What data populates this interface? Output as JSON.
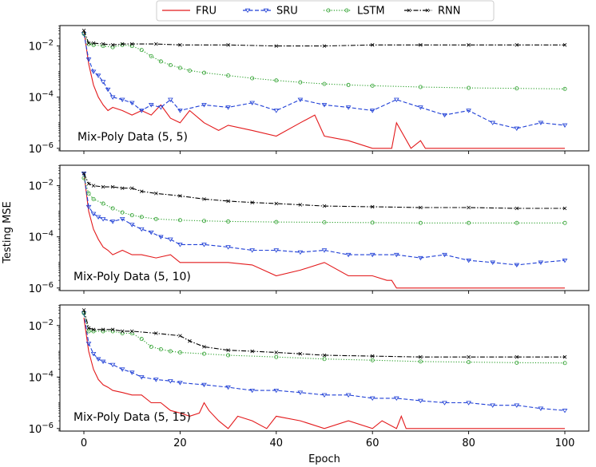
{
  "chart_data": {
    "type": "line",
    "xlabel": "Epoch",
    "ylabel": "Testing MSE",
    "yscale": "log",
    "xlim": [
      0,
      100
    ],
    "ylim": [
      1e-06,
      0.1
    ],
    "xticks": [
      "0",
      "20",
      "40",
      "60",
      "80",
      "100"
    ],
    "yticks": [
      {
        "base": "10",
        "exp": "−6",
        "value": 1e-06
      },
      {
        "base": "10",
        "exp": "−4",
        "value": 0.0001
      },
      {
        "base": "10",
        "exp": "−2",
        "value": 0.01
      }
    ],
    "legend": {
      "placement": "top-center",
      "entries": [
        {
          "name": "FRU",
          "color": "#e31a1c",
          "style": "solid",
          "marker": "none"
        },
        {
          "name": "SRU",
          "color": "#1f3fd6",
          "style": "dashed",
          "marker": "triangle-down"
        },
        {
          "name": "LSTM",
          "color": "#2ca02c",
          "style": "dotted",
          "marker": "circle"
        },
        {
          "name": "RNN",
          "color": "#000000",
          "style": "dashdot",
          "marker": "x"
        }
      ]
    },
    "panels": [
      {
        "title": "Mix-Poly Data (5, 5)",
        "series": [
          {
            "name": "FRU",
            "x": [
              0,
              1,
              2,
              3,
              4,
              5,
              6,
              8,
              10,
              12,
              14,
              16,
              18,
              20,
              22,
              25,
              28,
              30,
              35,
              40,
              45,
              48,
              50,
              55,
              60,
              64,
              65,
              68,
              70,
              71,
              75,
              80,
              85,
              90,
              95,
              100
            ],
            "y": [
              0.04,
              0.002,
              0.0003,
              0.0001,
              5e-05,
              3e-05,
              4e-05,
              3e-05,
              2e-05,
              3e-05,
              2e-05,
              5e-05,
              1.5e-05,
              1e-05,
              3e-05,
              1e-05,
              5e-06,
              8e-06,
              5e-06,
              3e-06,
              1e-05,
              2e-05,
              3e-06,
              2e-06,
              1e-06,
              1e-06,
              1e-05,
              1e-06,
              2e-06,
              1e-06,
              1e-06,
              1e-06,
              1e-06,
              1e-06,
              1e-06,
              1e-06
            ]
          },
          {
            "name": "SRU",
            "x": [
              0,
              1,
              2,
              3,
              4,
              5,
              6,
              8,
              10,
              12,
              14,
              16,
              18,
              20,
              25,
              30,
              35,
              40,
              45,
              50,
              55,
              60,
              65,
              70,
              75,
              80,
              85,
              90,
              95,
              100
            ],
            "y": [
              0.03,
              0.003,
              0.001,
              0.0007,
              0.0004,
              0.0002,
              0.0001,
              8e-05,
              6e-05,
              3e-05,
              5e-05,
              4e-05,
              8e-05,
              3e-05,
              5e-05,
              4e-05,
              6e-05,
              3e-05,
              8e-05,
              5e-05,
              4e-05,
              3e-05,
              8e-05,
              4e-05,
              2e-05,
              3e-05,
              1e-05,
              6e-06,
              1e-05,
              8e-06
            ]
          },
          {
            "name": "LSTM",
            "x": [
              0,
              1,
              2,
              4,
              6,
              8,
              10,
              12,
              14,
              16,
              18,
              20,
              22,
              25,
              30,
              35,
              40,
              45,
              50,
              55,
              60,
              70,
              80,
              90,
              100
            ],
            "y": [
              0.03,
              0.012,
              0.011,
              0.01,
              0.009,
              0.011,
              0.01,
              0.007,
              0.004,
              0.0025,
              0.0018,
              0.0014,
              0.0011,
              0.0009,
              0.0007,
              0.00055,
              0.00045,
              0.00038,
              0.00033,
              0.0003,
              0.00028,
              0.00025,
              0.00023,
              0.00022,
              0.00021
            ]
          },
          {
            "name": "RNN",
            "x": [
              0,
              1,
              2,
              4,
              6,
              8,
              10,
              15,
              20,
              30,
              40,
              50,
              60,
              70,
              80,
              90,
              100
            ],
            "y": [
              0.04,
              0.013,
              0.013,
              0.012,
              0.011,
              0.012,
              0.012,
              0.012,
              0.011,
              0.011,
              0.01,
              0.01,
              0.011,
              0.011,
              0.011,
              0.011,
              0.011
            ]
          }
        ]
      },
      {
        "title": "Mix-Poly Data (5, 10)",
        "series": [
          {
            "name": "FRU",
            "x": [
              0,
              1,
              2,
              3,
              4,
              5,
              6,
              8,
              10,
              12,
              15,
              18,
              20,
              25,
              30,
              35,
              40,
              45,
              50,
              55,
              60,
              63,
              64,
              65,
              70,
              80,
              90,
              100
            ],
            "y": [
              0.03,
              0.001,
              0.0002,
              8e-05,
              4e-05,
              3e-05,
              2e-05,
              3e-05,
              2e-05,
              2e-05,
              1.5e-05,
              2e-05,
              1e-05,
              1e-05,
              1e-05,
              8e-06,
              3e-06,
              5e-06,
              1e-05,
              3e-06,
              3e-06,
              2e-06,
              2e-06,
              1e-06,
              1e-06,
              1e-06,
              1e-06,
              1e-06
            ]
          },
          {
            "name": "SRU",
            "x": [
              0,
              1,
              2,
              3,
              4,
              6,
              8,
              10,
              12,
              14,
              16,
              18,
              20,
              25,
              30,
              35,
              40,
              45,
              50,
              55,
              60,
              65,
              70,
              75,
              80,
              85,
              90,
              95,
              100
            ],
            "y": [
              0.03,
              0.0015,
              0.0008,
              0.0006,
              0.0005,
              0.0004,
              0.0005,
              0.0003,
              0.0002,
              0.00015,
              0.0001,
              8e-05,
              5e-05,
              5e-05,
              4e-05,
              3e-05,
              3e-05,
              2.5e-05,
              3e-05,
              2e-05,
              2e-05,
              2e-05,
              1.5e-05,
              2e-05,
              1.2e-05,
              1e-05,
              8e-06,
              1e-05,
              1.2e-05
            ]
          },
          {
            "name": "LSTM",
            "x": [
              0,
              1,
              2,
              4,
              6,
              8,
              10,
              12,
              15,
              20,
              25,
              30,
              40,
              50,
              60,
              70,
              80,
              90,
              100
            ],
            "y": [
              0.02,
              0.005,
              0.003,
              0.002,
              0.0013,
              0.0009,
              0.0007,
              0.0006,
              0.0005,
              0.00045,
              0.00042,
              0.0004,
              0.00038,
              0.00037,
              0.00036,
              0.00035,
              0.00035,
              0.00035,
              0.00035
            ]
          },
          {
            "name": "RNN",
            "x": [
              0,
              1,
              2,
              4,
              6,
              8,
              10,
              12,
              15,
              20,
              25,
              30,
              35,
              40,
              45,
              50,
              60,
              70,
              80,
              90,
              100
            ],
            "y": [
              0.03,
              0.012,
              0.01,
              0.009,
              0.009,
              0.008,
              0.008,
              0.006,
              0.005,
              0.004,
              0.003,
              0.0025,
              0.0022,
              0.002,
              0.0018,
              0.0016,
              0.0015,
              0.0014,
              0.0014,
              0.0013,
              0.0013
            ]
          }
        ]
      },
      {
        "title": "Mix-Poly Data (5, 15)",
        "series": [
          {
            "name": "FRU",
            "x": [
              0,
              1,
              2,
              3,
              4,
              5,
              6,
              8,
              10,
              12,
              14,
              16,
              18,
              20,
              22,
              24,
              25,
              26,
              28,
              30,
              32,
              35,
              38,
              40,
              45,
              50,
              55,
              60,
              62,
              65,
              66,
              67,
              68,
              70,
              80,
              90,
              100
            ],
            "y": [
              0.02,
              0.001,
              0.0002,
              8e-05,
              5e-05,
              4e-05,
              3e-05,
              2.5e-05,
              2e-05,
              2e-05,
              1e-05,
              1e-05,
              5e-06,
              4e-06,
              3e-06,
              4e-06,
              1e-05,
              5e-06,
              2e-06,
              1e-06,
              3e-06,
              2e-06,
              1e-06,
              3e-06,
              2e-06,
              1e-06,
              2e-06,
              1e-06,
              2e-06,
              1e-06,
              3e-06,
              1e-06,
              1e-06,
              1e-06,
              1e-06,
              1e-06,
              1e-06
            ]
          },
          {
            "name": "SRU",
            "x": [
              0,
              1,
              2,
              3,
              4,
              6,
              8,
              10,
              12,
              15,
              18,
              20,
              25,
              30,
              35,
              40,
              45,
              50,
              55,
              60,
              65,
              70,
              75,
              80,
              85,
              90,
              95,
              100
            ],
            "y": [
              0.03,
              0.002,
              0.0008,
              0.0005,
              0.0004,
              0.0003,
              0.0002,
              0.00015,
              0.0001,
              8e-05,
              7e-05,
              6e-05,
              5e-05,
              4e-05,
              3e-05,
              3e-05,
              2.5e-05,
              2e-05,
              2e-05,
              1.5e-05,
              1.5e-05,
              1.2e-05,
              1e-05,
              1e-05,
              8e-06,
              8e-06,
              6e-06,
              5e-06
            ]
          },
          {
            "name": "LSTM",
            "x": [
              0,
              1,
              2,
              4,
              6,
              8,
              10,
              12,
              14,
              16,
              18,
              20,
              25,
              30,
              40,
              50,
              60,
              70,
              80,
              90,
              100
            ],
            "y": [
              0.03,
              0.006,
              0.006,
              0.006,
              0.006,
              0.005,
              0.005,
              0.003,
              0.0015,
              0.0012,
              0.001,
              0.0009,
              0.0008,
              0.0007,
              0.0006,
              0.0005,
              0.00045,
              0.0004,
              0.00038,
              0.00036,
              0.00035
            ]
          },
          {
            "name": "RNN",
            "x": [
              0,
              1,
              2,
              4,
              6,
              8,
              10,
              15,
              20,
              22,
              25,
              30,
              35,
              40,
              45,
              50,
              60,
              70,
              80,
              90,
              100
            ],
            "y": [
              0.04,
              0.008,
              0.007,
              0.007,
              0.007,
              0.006,
              0.006,
              0.005,
              0.004,
              0.0025,
              0.0015,
              0.0011,
              0.001,
              0.0009,
              0.0008,
              0.0007,
              0.00065,
              0.0006,
              0.0006,
              0.0006,
              0.0006
            ]
          }
        ]
      }
    ]
  }
}
